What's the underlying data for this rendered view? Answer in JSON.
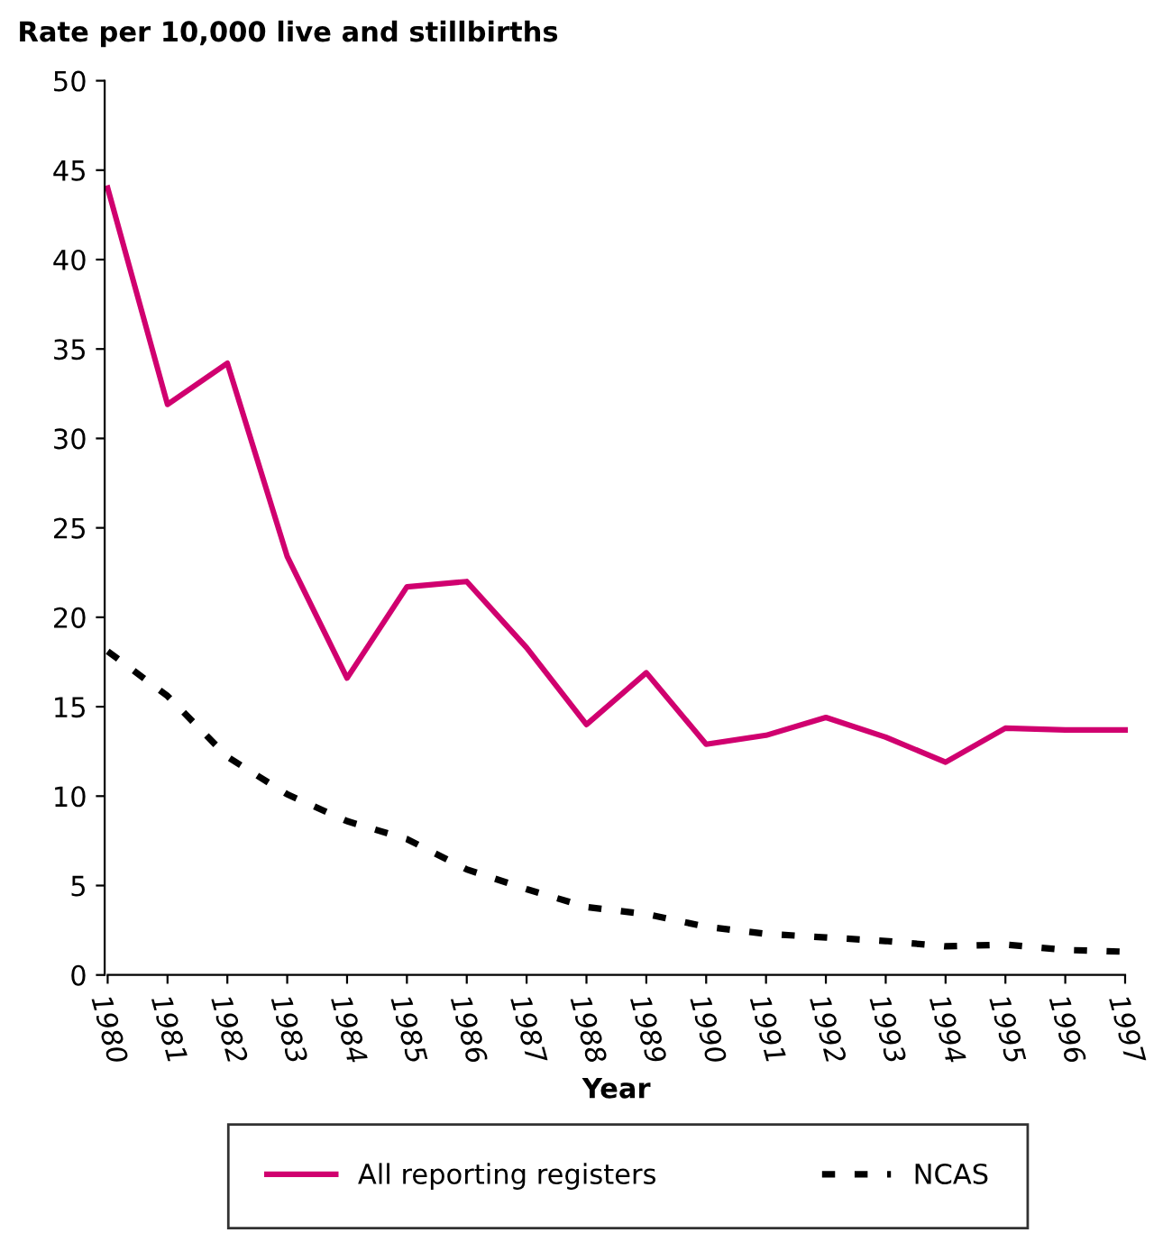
{
  "chart_data": {
    "type": "line",
    "ylabel": "Rate per 10,000 live and stillbirths",
    "xlabel": "Year",
    "categories": [
      "1980",
      "1981",
      "1982",
      "1983",
      "1984",
      "1985",
      "1986",
      "1987",
      "1988",
      "1989",
      "1990",
      "1991",
      "1992",
      "1993",
      "1994",
      "1995",
      "1996",
      "1997"
    ],
    "series": [
      {
        "name": "All reporting registers",
        "color": "#d0006f",
        "line_style": "solid",
        "values": [
          44.0,
          31.9,
          34.2,
          23.4,
          16.6,
          21.7,
          22.0,
          18.3,
          14.0,
          16.9,
          12.9,
          13.4,
          14.4,
          13.3,
          11.9,
          13.8,
          13.7,
          13.7
        ]
      },
      {
        "name": "NCAS",
        "color": "#000000",
        "line_style": "dotted",
        "values": [
          18.1,
          15.6,
          12.2,
          10.1,
          8.6,
          7.6,
          5.9,
          4.8,
          3.8,
          3.4,
          2.7,
          2.3,
          2.1,
          1.9,
          1.6,
          1.7,
          1.4,
          1.3
        ]
      }
    ],
    "ylim": [
      0,
      50
    ],
    "yticks": [
      0,
      5,
      10,
      15,
      20,
      25,
      30,
      35,
      40,
      45,
      50
    ],
    "grid": false,
    "legend": "bottom",
    "marker": "none"
  }
}
